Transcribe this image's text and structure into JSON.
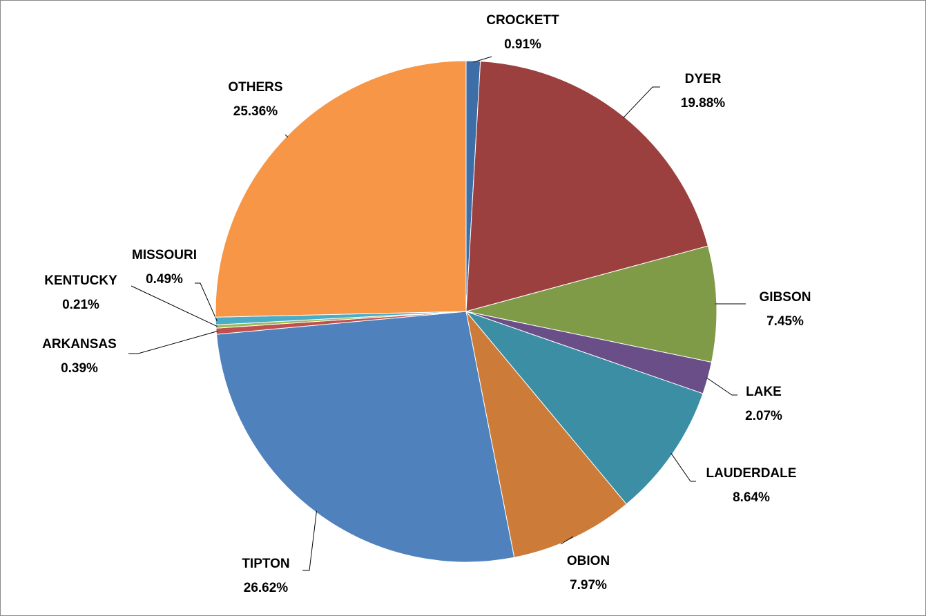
{
  "chart_data": {
    "type": "pie",
    "categories": [
      "CROCKETT",
      "DYER",
      "GIBSON",
      "LAKE",
      "LAUDERDALE",
      "OBION",
      "TIPTON",
      "ARKANSAS",
      "KENTUCKY",
      "MISSOURI",
      "OTHERS"
    ],
    "values": [
      0.91,
      19.88,
      7.45,
      2.07,
      8.64,
      7.97,
      26.62,
      0.39,
      0.21,
      0.49,
      25.36
    ],
    "value_labels": [
      "0.91%",
      "19.88%",
      "7.45%",
      "2.07%",
      "8.64%",
      "7.97%",
      "26.62%",
      "0.39%",
      "0.21%",
      "0.49%",
      "25.36%"
    ],
    "colors": [
      "#3e6ea8",
      "#9b3f3f",
      "#7f9b48",
      "#6a4e87",
      "#3b8ea4",
      "#cc7b38",
      "#4f81bd",
      "#c0504d",
      "#9bbb59",
      "#4bacc6",
      "#f79646"
    ]
  }
}
